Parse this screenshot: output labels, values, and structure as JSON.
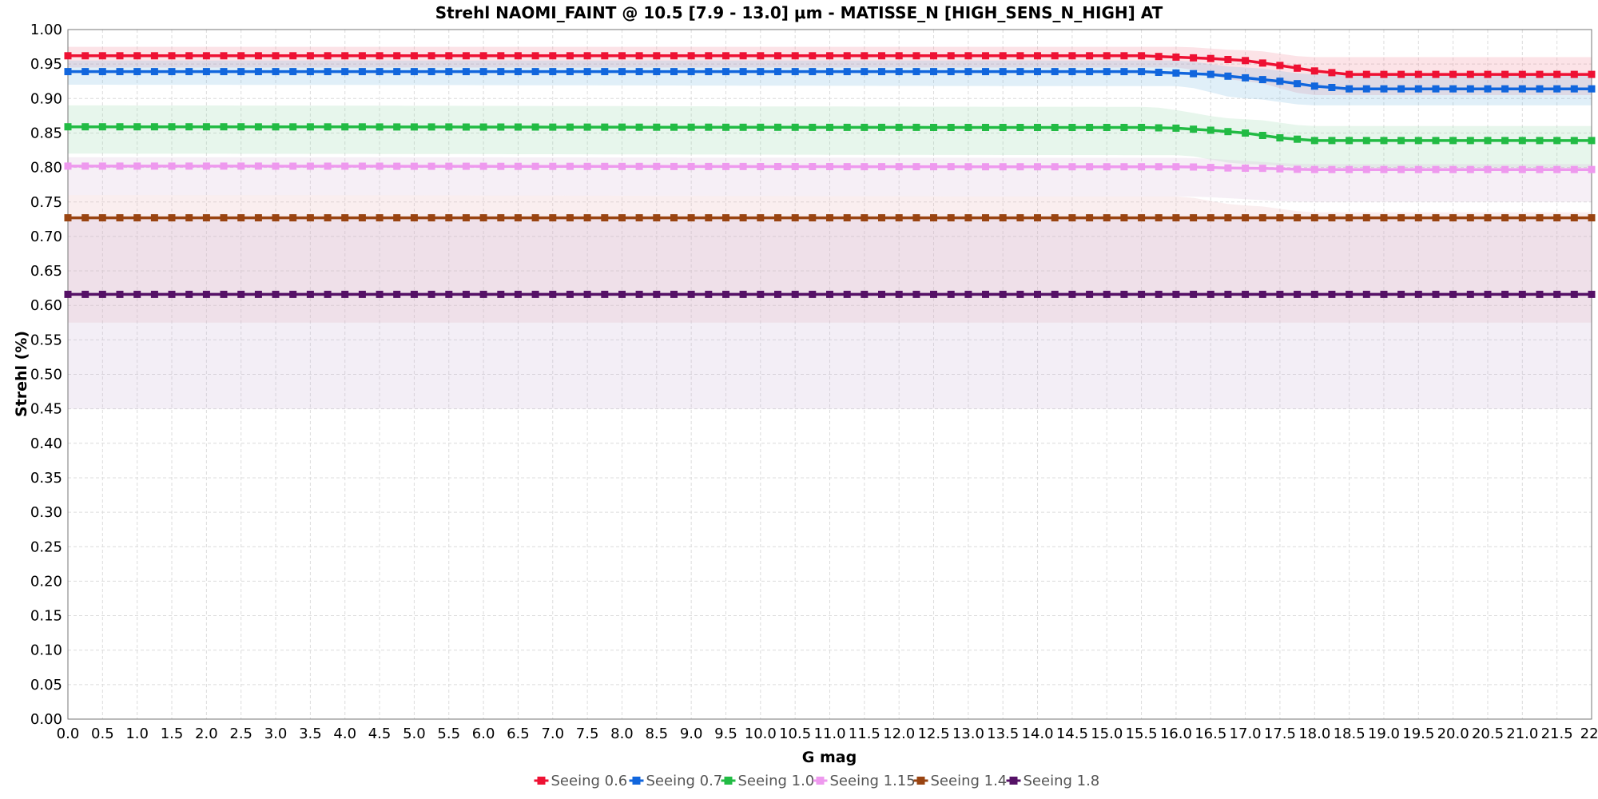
{
  "chart_data": {
    "type": "line",
    "title": "Strehl NAOMI_FAINT @ 10.5 [7.9 - 13.0] μm - MATISSE_N [HIGH_SENS_N_HIGH] AT",
    "xlabel": "G mag",
    "ylabel": "Strehl (%)",
    "xlim": [
      0,
      22
    ],
    "ylim": [
      0,
      1
    ],
    "x_step": 0.25,
    "x_ticks": [
      "0.0",
      "0.5",
      "1.0",
      "1.5",
      "2.0",
      "2.5",
      "3.0",
      "3.5",
      "4.0",
      "4.5",
      "5.0",
      "5.5",
      "6.0",
      "6.5",
      "7.0",
      "7.5",
      "8.0",
      "8.5",
      "9.0",
      "9.5",
      "10.0",
      "10.5",
      "11.0",
      "11.5",
      "12.0",
      "12.5",
      "13.0",
      "13.5",
      "14.0",
      "14.5",
      "15.0",
      "15.5",
      "16.0",
      "16.5",
      "17.0",
      "17.5",
      "18.0",
      "18.5",
      "19.0",
      "19.5",
      "20.0",
      "20.5",
      "21.0",
      "21.5",
      "22."
    ],
    "y_ticks": [
      "0.00",
      "0.05",
      "0.10",
      "0.15",
      "0.20",
      "0.25",
      "0.30",
      "0.35",
      "0.40",
      "0.45",
      "0.50",
      "0.55",
      "0.60",
      "0.65",
      "0.70",
      "0.75",
      "0.80",
      "0.85",
      "0.90",
      "0.95",
      "1.00"
    ],
    "grid": true,
    "legend_position": "bottom-center",
    "series": [
      {
        "name": "Seeing 0.6",
        "color": "#ee1133",
        "band_color": "#f08090",
        "points": [
          [
            0,
            0.962
          ],
          [
            15.5,
            0.962
          ],
          [
            16.0,
            0.96
          ],
          [
            16.5,
            0.958
          ],
          [
            17.0,
            0.955
          ],
          [
            17.5,
            0.948
          ],
          [
            18.0,
            0.94
          ],
          [
            18.5,
            0.935
          ],
          [
            22,
            0.935
          ]
        ],
        "band_upper": [
          [
            0,
            0.975
          ],
          [
            16.0,
            0.975
          ],
          [
            17.0,
            0.97
          ],
          [
            18.0,
            0.96
          ],
          [
            22,
            0.96
          ]
        ],
        "band_lower": [
          [
            0,
            0.945
          ],
          [
            16.0,
            0.945
          ],
          [
            17.0,
            0.925
          ],
          [
            18.0,
            0.905
          ],
          [
            22,
            0.905
          ]
        ]
      },
      {
        "name": "Seeing 0.7",
        "color": "#1166dd",
        "band_color": "#70b8e0",
        "points": [
          [
            0,
            0.939
          ],
          [
            15.5,
            0.939
          ],
          [
            16.0,
            0.937
          ],
          [
            16.5,
            0.935
          ],
          [
            17.0,
            0.93
          ],
          [
            17.5,
            0.925
          ],
          [
            18.0,
            0.918
          ],
          [
            18.5,
            0.914
          ],
          [
            22,
            0.914
          ]
        ],
        "band_upper": [
          [
            0,
            0.955
          ],
          [
            16.0,
            0.955
          ],
          [
            17.0,
            0.945
          ],
          [
            18.0,
            0.935
          ],
          [
            22,
            0.935
          ]
        ],
        "band_lower": [
          [
            0,
            0.92
          ],
          [
            16.0,
            0.918
          ],
          [
            17.0,
            0.9
          ],
          [
            18.0,
            0.89
          ],
          [
            22,
            0.89
          ]
        ]
      },
      {
        "name": "Seeing 1.0",
        "color": "#22bb44",
        "band_color": "#90d8a8",
        "points": [
          [
            0,
            0.859
          ],
          [
            15.5,
            0.858
          ],
          [
            16.0,
            0.857
          ],
          [
            16.5,
            0.854
          ],
          [
            17.0,
            0.85
          ],
          [
            17.5,
            0.843
          ],
          [
            18.0,
            0.839
          ],
          [
            22,
            0.839
          ]
        ],
        "band_upper": [
          [
            0,
            0.89
          ],
          [
            15.5,
            0.888
          ],
          [
            17.0,
            0.87
          ],
          [
            18.0,
            0.86
          ],
          [
            22,
            0.86
          ]
        ],
        "band_lower": [
          [
            0,
            0.82
          ],
          [
            16.0,
            0.818
          ],
          [
            17.0,
            0.805
          ],
          [
            18.0,
            0.8
          ],
          [
            22,
            0.8
          ]
        ]
      },
      {
        "name": "Seeing 1.15",
        "color": "#ee99ee",
        "band_color": "#d8b8d8",
        "points": [
          [
            0,
            0.802
          ],
          [
            16.0,
            0.801
          ],
          [
            17.0,
            0.799
          ],
          [
            18.0,
            0.797
          ],
          [
            22,
            0.797
          ]
        ],
        "band_upper": [
          [
            0,
            0.815
          ],
          [
            16.0,
            0.814
          ],
          [
            18.0,
            0.805
          ],
          [
            22,
            0.805
          ]
        ],
        "band_lower": [
          [
            0,
            0.76
          ],
          [
            16.0,
            0.758
          ],
          [
            18.0,
            0.75
          ],
          [
            22,
            0.75
          ]
        ]
      },
      {
        "name": "Seeing 1.4",
        "color": "#994411",
        "band_color": "#e8b0b8",
        "points": [
          [
            0,
            0.727
          ],
          [
            22,
            0.727
          ]
        ],
        "band_upper": [
          [
            0,
            0.76
          ],
          [
            16.0,
            0.758
          ],
          [
            17.0,
            0.745
          ],
          [
            18.0,
            0.735
          ],
          [
            22,
            0.735
          ]
        ],
        "band_lower": [
          [
            0,
            0.575
          ],
          [
            22,
            0.575
          ]
        ]
      },
      {
        "name": "Seeing 1.8",
        "color": "#551166",
        "band_color": "#c8b0d8",
        "points": [
          [
            0,
            0.616
          ],
          [
            22,
            0.616
          ]
        ],
        "band_upper": [
          [
            0,
            0.725
          ],
          [
            22,
            0.725
          ]
        ],
        "band_lower": [
          [
            0,
            0.45
          ],
          [
            22,
            0.45
          ]
        ]
      }
    ]
  }
}
